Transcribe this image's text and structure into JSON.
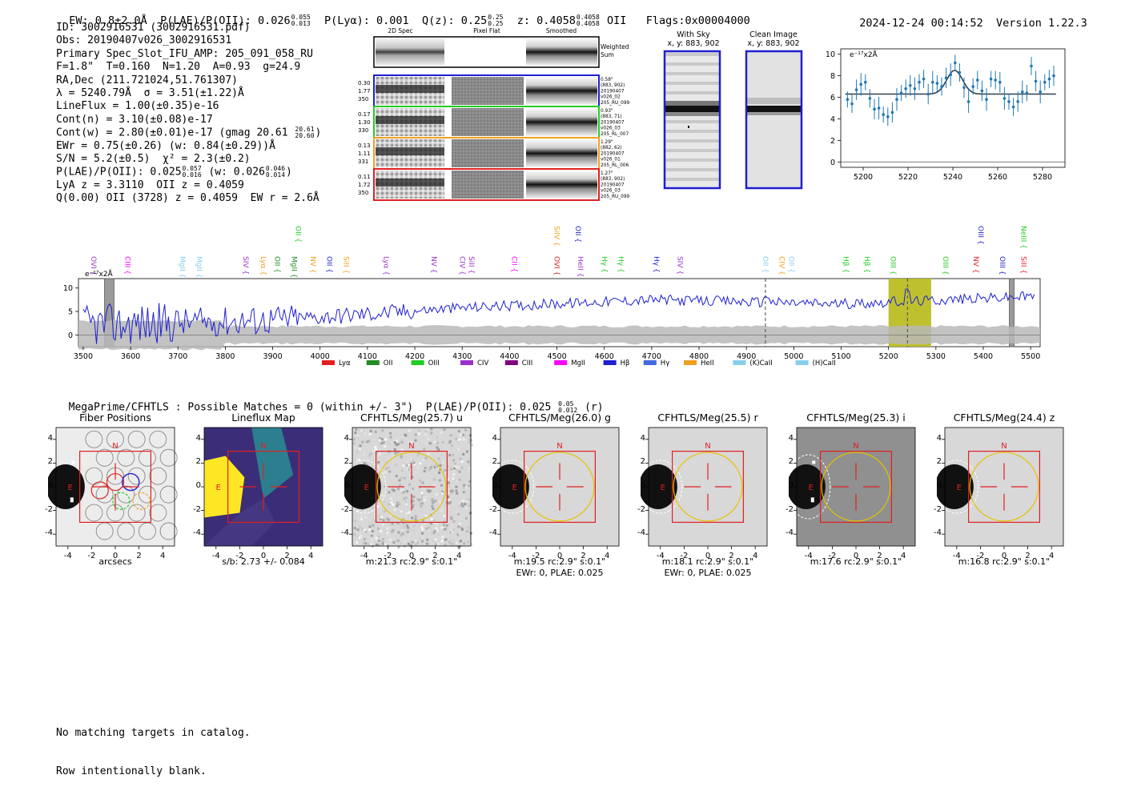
{
  "header": {
    "ew": "EW: 0.8±2.0Å",
    "plae_label": "P(LAE)/P(OII): 0.026",
    "plae_hi": "0.055",
    "plae_lo": "0.013",
    "plya": "P(Lyα): 0.001",
    "qz_label": "Q(z): 0.25",
    "qz_hi": "0.25",
    "qz_lo": "0.25",
    "z_label": "z: 0.4058",
    "z_hi": "0.4058",
    "z_lo": "0.4058",
    "z_line": "OII",
    "flags": "Flags:0x00004000",
    "datetime": "2024-12-24 00:14:52",
    "version": "Version 1.22.3"
  },
  "info": {
    "l1": "ID: 3002916531 (3002916531.pdf)",
    "l2": "Obs: 20190407v026_3002916531",
    "l3": "Primary Spec_Slot_IFU_AMP: 205_091_058_RU",
    "l4": "F=1.8\"  T=0.160  N=1.20  A=0.93  g=24.9",
    "l5": "RA,Dec (211.721024,51.761307)",
    "l6": "λ = 5240.79Å  σ = 3.51(±1.22)Å",
    "l7": "LineFlux = 1.00(±0.35)e-16",
    "l8": "Cont(n) = 3.10(±0.08)e-17",
    "l9": "Cont(w) = 2.80(±0.01)e-17 (gmag 20.61",
    "l9_hi": "20.61",
    "l9_lo": "20.60",
    "l9_end": ")",
    "l10": "EWr = 0.75(±0.26) (w: 0.84(±0.29))Å",
    "l11": "S/N = 5.2(±0.5)  χ² = 2.3(±0.2)",
    "l12": "P(LAE)/P(OII): 0.025",
    "l12_hi": "0.057",
    "l12_lo": "0.016",
    "l12_mid": " (w: 0.026",
    "l12_hi2": "0.046",
    "l12_lo2": "0.014",
    "l12_end": ")",
    "l13": "LyA z = 3.3110  OII z = 0.4059",
    "l14": "Q(0.00) OII (3728) z = 0.4059  EW r = 2.6Å"
  },
  "cutouts": {
    "col_titles": [
      "2D Spec",
      "Pixel Flat",
      "Smoothed"
    ],
    "weighted_label_1": "Weighted",
    "weighted_label_2": "Sum",
    "rows": [
      {
        "left": [
          "0.30",
          "1.77",
          "350"
        ],
        "right": [
          "0.58\"",
          "(883, 902)",
          "20190407",
          "v026_02",
          "205_RU_099"
        ],
        "color": "#1f1fd0"
      },
      {
        "left": [
          "0.17",
          "1.30",
          "330"
        ],
        "right": [
          "0.93\"",
          "(883, 71)",
          "20190407",
          "v026_03",
          "205_RL_007"
        ],
        "color": "#22cc22"
      },
      {
        "left": [
          "0.13",
          "1.11",
          "331"
        ],
        "right": [
          "1.29\"",
          "(882, 62)",
          "20190407",
          "v026_01",
          "205_RL_006"
        ],
        "color": "#f0a020"
      },
      {
        "left": [
          "0.11",
          "1.72",
          "350"
        ],
        "right": [
          "1.27\"",
          "(883, 902)",
          "20190407",
          "v026_03",
          "205_RU_099"
        ],
        "color": "#e02020"
      }
    ],
    "with_sky_title": "With Sky",
    "with_sky_sub": "x, y: 883, 902",
    "clean_title": "Clean Image",
    "clean_sub": "x, y: 883, 902"
  },
  "line_fit": {
    "unit_label": "e⁻¹⁷x2Å",
    "x_ticks": [
      5200,
      5220,
      5240,
      5260,
      5280
    ],
    "y_ticks": [
      0,
      2,
      4,
      6,
      8,
      10
    ],
    "xlim": [
      5190,
      5290
    ],
    "ylim": [
      -0.5,
      10.5
    ],
    "points": [
      [
        5193,
        5.8
      ],
      [
        5195,
        5.4
      ],
      [
        5197,
        6.7
      ],
      [
        5199,
        7.2
      ],
      [
        5201,
        7.4
      ],
      [
        5203,
        5.9
      ],
      [
        5205,
        4.9
      ],
      [
        5207,
        5.0
      ],
      [
        5209,
        4.4
      ],
      [
        5211,
        4.2
      ],
      [
        5213,
        4.6
      ],
      [
        5215,
        5.8
      ],
      [
        5217,
        6.4
      ],
      [
        5219,
        6.8
      ],
      [
        5221,
        7.1
      ],
      [
        5223,
        6.8
      ],
      [
        5225,
        7.4
      ],
      [
        5227,
        7.7
      ],
      [
        5229,
        6.3
      ],
      [
        5231,
        7.4
      ],
      [
        5233,
        7.3
      ],
      [
        5235,
        7.0
      ],
      [
        5237,
        7.8
      ],
      [
        5239,
        8.1
      ],
      [
        5241,
        9.2
      ],
      [
        5243,
        8.3
      ],
      [
        5245,
        6.9
      ],
      [
        5247,
        5.6
      ],
      [
        5249,
        7.0
      ],
      [
        5251,
        7.6
      ],
      [
        5253,
        6.6
      ],
      [
        5255,
        5.8
      ],
      [
        5257,
        7.7
      ],
      [
        5259,
        7.6
      ],
      [
        5261,
        7.4
      ],
      [
        5263,
        5.9
      ],
      [
        5265,
        5.6
      ],
      [
        5267,
        5.1
      ],
      [
        5269,
        5.6
      ],
      [
        5271,
        6.5
      ],
      [
        5273,
        6.4
      ],
      [
        5275,
        8.9
      ],
      [
        5277,
        7.5
      ],
      [
        5279,
        6.5
      ],
      [
        5281,
        7.4
      ],
      [
        5283,
        7.7
      ],
      [
        5285,
        8.0
      ]
    ],
    "fit_continuum": 6.3,
    "fit_center": 5240.8,
    "fit_sigma": 3.51,
    "fit_amp": 2.2
  },
  "spectrum": {
    "unit_label": "e⁻¹⁷x2Å",
    "x_ticks": [
      3500,
      3600,
      3700,
      3800,
      3900,
      4000,
      4100,
      4200,
      4300,
      4400,
      4500,
      4600,
      4700,
      4800,
      4900,
      5000,
      5100,
      5200,
      5300,
      5400,
      5500
    ],
    "y_ticks": [
      0,
      5,
      10
    ],
    "xlim": [
      3490,
      5520
    ],
    "ylim": [
      -2.5,
      12
    ],
    "highlight": [
      5200,
      5290
    ],
    "dashed_lines": [
      4940,
      5240
    ],
    "grey_bands": [
      [
        3545,
        3565
      ],
      [
        5455,
        5465
      ]
    ],
    "line_labels": [
      {
        "w": 3512,
        "t": "OVI",
        "c": "#9932cc",
        "r": 0
      },
      {
        "w": 3584,
        "t": "CIII",
        "c": "#ff00ff",
        "r": 0
      },
      {
        "w": 3700,
        "t": "MgII",
        "c": "#87ceeb",
        "r": 0
      },
      {
        "w": 3735,
        "t": "MgII",
        "c": "#87ceeb",
        "r": 0
      },
      {
        "w": 3833,
        "t": "SIV",
        "c": "#9932cc",
        "r": 0
      },
      {
        "w": 3870,
        "t": "Lyα",
        "c": "#f0a020",
        "r": 0
      },
      {
        "w": 3900,
        "t": "OII",
        "c": "#228b22",
        "r": 0
      },
      {
        "w": 3935,
        "t": "MgII",
        "c": "#228b22",
        "r": 0
      },
      {
        "w": 3975,
        "t": "NV",
        "c": "#f0a020",
        "r": 0
      },
      {
        "w": 4010,
        "t": "OII",
        "c": "#1f1fd0",
        "r": 0
      },
      {
        "w": 4045,
        "t": "SiII",
        "c": "#f0a020",
        "r": 0
      },
      {
        "w": 4130,
        "t": "Lyα",
        "c": "#9932cc",
        "r": 0
      },
      {
        "w": 4230,
        "t": "NV",
        "c": "#9932cc",
        "r": 0
      },
      {
        "w": 4290,
        "t": "CIV",
        "c": "#9932cc",
        "r": 0
      },
      {
        "w": 4310,
        "t": "SiII",
        "c": "#9932cc",
        "r": 0
      },
      {
        "w": 4400,
        "t": "CII",
        "c": "#ff00ff",
        "r": 0
      },
      {
        "w": 4490,
        "t": "OVI",
        "c": "#e02020",
        "r": 0
      },
      {
        "w": 4540,
        "t": "HeII",
        "c": "#9932cc",
        "r": 0
      },
      {
        "w": 4590,
        "t": "Hγ",
        "c": "#22cc22",
        "r": 0
      },
      {
        "w": 4625,
        "t": "Hγ",
        "c": "#22cc22",
        "r": 0
      },
      {
        "w": 4700,
        "t": "Hγ",
        "c": "#1f1fd0",
        "r": 0
      },
      {
        "w": 4750,
        "t": "SIV",
        "c": "#9932cc",
        "r": 0
      },
      {
        "w": 4930,
        "t": "OII",
        "c": "#87ceeb",
        "r": 0
      },
      {
        "w": 4965,
        "t": "CIV",
        "c": "#f0a020",
        "r": 0
      },
      {
        "w": 4985,
        "t": "OII",
        "c": "#87ceeb",
        "r": 0
      },
      {
        "w": 5100,
        "t": "Hβ",
        "c": "#22cc22",
        "r": 0
      },
      {
        "w": 5145,
        "t": "Hβ",
        "c": "#22cc22",
        "r": 0
      },
      {
        "w": 5200,
        "t": "OIII",
        "c": "#22cc22",
        "r": 0
      },
      {
        "w": 5310,
        "t": "OIII",
        "c": "#22cc22",
        "r": 0
      },
      {
        "w": 5375,
        "t": "NV",
        "c": "#e02020",
        "r": 0
      },
      {
        "w": 5430,
        "t": "OIII",
        "c": "#1f1fd0",
        "r": 0
      },
      {
        "w": 5475,
        "t": "SiII",
        "c": "#e02020",
        "r": 0
      },
      {
        "w": 3944,
        "t": "OII",
        "c": "#22cc22",
        "r": 1
      },
      {
        "w": 4490,
        "t": "SiIV",
        "c": "#f0a020",
        "r": 1
      },
      {
        "w": 4535,
        "t": "OII",
        "c": "#1f1fd0",
        "r": 1
      },
      {
        "w": 5385,
        "t": "OIII",
        "c": "#1f1fd0",
        "r": 1
      },
      {
        "w": 5475,
        "t": "NeIII",
        "c": "#22cc22",
        "r": 1
      }
    ],
    "legend": [
      {
        "label": "Lyα",
        "color": "#e02020"
      },
      {
        "label": "OII",
        "color": "#228b22"
      },
      {
        "label": "OIII",
        "color": "#22cc22"
      },
      {
        "label": "CIV",
        "color": "#9932cc"
      },
      {
        "label": "CIII",
        "color": "#800080"
      },
      {
        "label": "MgII",
        "color": "#ff00ff"
      },
      {
        "label": "Hβ",
        "color": "#1f1fd0"
      },
      {
        "label": "Hγ",
        "color": "#4169e1"
      },
      {
        "label": "HeII",
        "color": "#f0a020"
      },
      {
        "label": "(K)CaII",
        "color": "#87ceeb"
      },
      {
        "label": "(H)CaII",
        "color": "#87ceeb"
      }
    ]
  },
  "megaprime": {
    "line_a": "MegaPrime/CFHTLS : Possible Matches = 0 (within +/- 3\")  P(LAE)/P(OII): 0.025",
    "hi": "0.05",
    "lo": "0.012",
    "end": "(r)"
  },
  "imaging": {
    "ticks": [
      -4,
      -2,
      0,
      2,
      4
    ],
    "panels": [
      {
        "title": "Fiber Positions",
        "cap1": "arcsecs",
        "cap2": ""
      },
      {
        "title": "Lineflux Map",
        "cap1": "s/b: 2.73 +/- 0.084",
        "cap2": ""
      },
      {
        "title": "CFHTLS/Meg(25.7) u",
        "cap1": "m:21.3 rc:2.9\"  s:0.1\"",
        "cap2": ""
      },
      {
        "title": "CFHTLS/Meg(26.0) g",
        "cap1": "m:19.5 rc:2.9\"  s:0.1\"",
        "cap2": "EWr: 0, PLAE: 0.025"
      },
      {
        "title": "CFHTLS/Meg(25.5) r",
        "cap1": "m:18.1 rc:2.9\"  s:0.1\"",
        "cap2": "EWr: 0, PLAE: 0.025"
      },
      {
        "title": "CFHTLS/Meg(25.3) i",
        "cap1": "m:17.6 rc:2.9\"  s:0.1\"",
        "cap2": ""
      },
      {
        "title": "CFHTLS/Meg(24.4) z",
        "cap1": "m:16.8 rc:2.9\"  s:0.1\"",
        "cap2": ""
      }
    ],
    "north_label": "N",
    "east_label": "E"
  },
  "footer": {
    "line1": "No matching targets in catalog.",
    "line2": "Row intentionally blank."
  }
}
